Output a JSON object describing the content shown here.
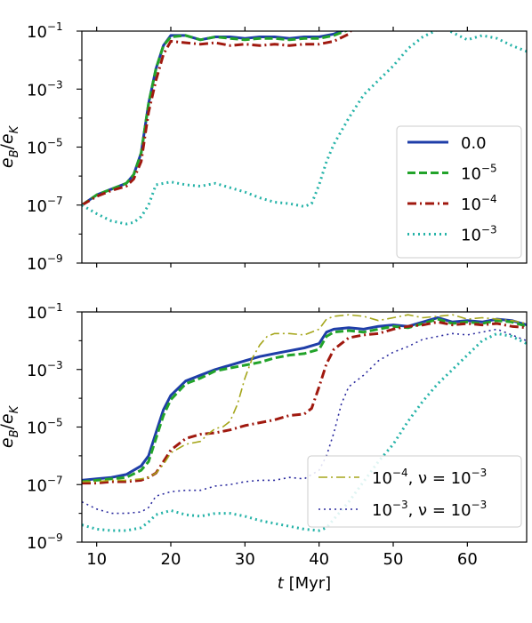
{
  "chart_data": [
    {
      "type": "line",
      "xlabel": "",
      "ylabel": "e_B / ē_K",
      "xlim": [
        8,
        68
      ],
      "ylim_log10": [
        -9,
        -1
      ],
      "yscale": "log",
      "x_ticks": [
        10,
        20,
        30,
        40,
        50,
        60
      ],
      "x_tick_labels": [],
      "y_ticks_log10": [
        -9,
        -7,
        -5,
        -3,
        -1
      ],
      "y_tick_labels": [
        {
          "base": "10",
          "exp": "−9"
        },
        {
          "base": "10",
          "exp": "−7"
        },
        {
          "base": "10",
          "exp": "−5"
        },
        {
          "base": "10",
          "exp": "−3"
        },
        {
          "base": "10",
          "exp": "−1"
        }
      ],
      "legend_position": "lower-right",
      "series": [
        {
          "name": "0.0",
          "name_exp": "",
          "color": "#1f3ea8",
          "dash": "solid",
          "width": 3,
          "x": [
            8,
            10,
            12,
            14,
            15,
            16,
            17,
            18,
            19,
            20,
            22,
            24,
            26,
            28,
            30,
            32,
            34,
            36,
            38,
            40,
            42,
            44,
            44.5
          ],
          "y_log10": [
            -7.0,
            -6.65,
            -6.45,
            -6.25,
            -5.95,
            -5.2,
            -3.5,
            -2.3,
            -1.5,
            -1.15,
            -1.15,
            -1.3,
            -1.2,
            -1.2,
            -1.25,
            -1.2,
            -1.2,
            -1.25,
            -1.2,
            -1.2,
            -1.1,
            -0.9,
            -0.7
          ]
        },
        {
          "name": "10",
          "name_exp": "−5",
          "color": "#22a32a",
          "dash": "dashed",
          "width": 3,
          "x": [
            8,
            10,
            12,
            14,
            15,
            16,
            17,
            18,
            19,
            20,
            22,
            24,
            26,
            28,
            30,
            32,
            34,
            36,
            38,
            40,
            42,
            44,
            44.5
          ],
          "y_log10": [
            -7.0,
            -6.65,
            -6.45,
            -6.25,
            -5.95,
            -5.2,
            -3.5,
            -2.3,
            -1.5,
            -1.2,
            -1.15,
            -1.3,
            -1.2,
            -1.25,
            -1.3,
            -1.25,
            -1.25,
            -1.3,
            -1.25,
            -1.25,
            -1.15,
            -0.95,
            -0.7
          ]
        },
        {
          "name": "10",
          "name_exp": "−4",
          "color": "#a0190f",
          "dash": "dashdot",
          "width": 3,
          "x": [
            8,
            10,
            12,
            14,
            15,
            16,
            17,
            18,
            19,
            20,
            22,
            24,
            26,
            28,
            30,
            32,
            34,
            36,
            38,
            40,
            42,
            44,
            44.5
          ],
          "y_log10": [
            -7.0,
            -6.7,
            -6.5,
            -6.35,
            -6.1,
            -5.5,
            -3.8,
            -2.7,
            -1.8,
            -1.35,
            -1.4,
            -1.45,
            -1.4,
            -1.5,
            -1.45,
            -1.5,
            -1.45,
            -1.5,
            -1.45,
            -1.45,
            -1.35,
            -1.1,
            -0.9
          ]
        },
        {
          "name": "10",
          "name_exp": "−3",
          "color": "#26b3a8",
          "dash": "dotted",
          "width": 3,
          "x": [
            8,
            10,
            12,
            14,
            15,
            16,
            17,
            18,
            20,
            22,
            24,
            26,
            28,
            30,
            32,
            34,
            36,
            38,
            39,
            40,
            41,
            42,
            44,
            46,
            48,
            50,
            52,
            54,
            56,
            57,
            58,
            60,
            62,
            64,
            66,
            68
          ],
          "y_log10": [
            -7.0,
            -7.3,
            -7.55,
            -7.65,
            -7.6,
            -7.4,
            -7.0,
            -6.3,
            -6.2,
            -6.3,
            -6.35,
            -6.25,
            -6.4,
            -6.55,
            -6.75,
            -6.9,
            -6.95,
            -7.05,
            -6.95,
            -6.3,
            -5.5,
            -4.9,
            -4.0,
            -3.2,
            -2.7,
            -2.2,
            -1.6,
            -1.2,
            -0.95,
            -0.9,
            -1.05,
            -1.3,
            -1.15,
            -1.25,
            -1.5,
            -1.7
          ]
        }
      ]
    },
    {
      "type": "line",
      "xlabel": "t [Myr]",
      "ylabel": "e_B / ē_K",
      "xlim": [
        8,
        68
      ],
      "ylim_log10": [
        -9,
        -1
      ],
      "yscale": "log",
      "x_ticks": [
        10,
        20,
        30,
        40,
        50,
        60
      ],
      "x_tick_labels": [
        "10",
        "20",
        "30",
        "40",
        "50",
        "60"
      ],
      "y_ticks_log10": [
        -9,
        -7,
        -5,
        -3,
        -1
      ],
      "y_tick_labels": [
        {
          "base": "10",
          "exp": "−9"
        },
        {
          "base": "10",
          "exp": "−7"
        },
        {
          "base": "10",
          "exp": "−5"
        },
        {
          "base": "10",
          "exp": "−3"
        },
        {
          "base": "10",
          "exp": "−1"
        }
      ],
      "legend_position": "lower-right",
      "series": [
        {
          "name": "",
          "color": "#1f3ea8",
          "dash": "solid",
          "width": 3,
          "in_legend": false,
          "x": [
            8,
            10,
            12,
            14,
            16,
            17,
            18,
            19,
            20,
            22,
            24,
            26,
            28,
            30,
            32,
            34,
            36,
            38,
            40,
            41,
            42,
            44,
            46,
            48,
            50,
            52,
            54,
            56,
            58,
            60,
            62,
            64,
            66,
            68
          ],
          "y_log10": [
            -6.85,
            -6.8,
            -6.75,
            -6.65,
            -6.35,
            -6.0,
            -5.2,
            -4.4,
            -3.9,
            -3.4,
            -3.2,
            -3.0,
            -2.85,
            -2.7,
            -2.55,
            -2.45,
            -2.35,
            -2.25,
            -2.1,
            -1.7,
            -1.6,
            -1.55,
            -1.6,
            -1.5,
            -1.45,
            -1.5,
            -1.35,
            -1.2,
            -1.35,
            -1.3,
            -1.35,
            -1.25,
            -1.3,
            -1.45
          ]
        },
        {
          "name": "",
          "color": "#22a32a",
          "dash": "dashed",
          "width": 3,
          "in_legend": false,
          "x": [
            8,
            10,
            12,
            14,
            16,
            17,
            18,
            19,
            20,
            22,
            24,
            26,
            28,
            30,
            32,
            34,
            36,
            38,
            40,
            41,
            42,
            44,
            46,
            48,
            50,
            52,
            54,
            56,
            58,
            60,
            62,
            64,
            66,
            68
          ],
          "y_log10": [
            -6.9,
            -6.85,
            -6.8,
            -6.75,
            -6.5,
            -6.2,
            -5.4,
            -4.6,
            -4.05,
            -3.5,
            -3.3,
            -3.05,
            -2.95,
            -2.85,
            -2.75,
            -2.6,
            -2.5,
            -2.45,
            -2.3,
            -1.85,
            -1.7,
            -1.65,
            -1.7,
            -1.6,
            -1.5,
            -1.55,
            -1.4,
            -1.25,
            -1.4,
            -1.35,
            -1.4,
            -1.3,
            -1.35,
            -1.5
          ]
        },
        {
          "name": "",
          "color": "#a0190f",
          "dash": "dashdot",
          "width": 3,
          "in_legend": false,
          "x": [
            8,
            10,
            12,
            14,
            16,
            17,
            18,
            19,
            20,
            22,
            24,
            26,
            28,
            30,
            32,
            34,
            36,
            38,
            39,
            40,
            41,
            42,
            44,
            46,
            48,
            50,
            52,
            54,
            56,
            58,
            60,
            62,
            64,
            66,
            68
          ],
          "y_log10": [
            -6.95,
            -6.95,
            -6.9,
            -6.9,
            -6.85,
            -6.75,
            -6.6,
            -6.2,
            -5.8,
            -5.4,
            -5.25,
            -5.2,
            -5.1,
            -4.95,
            -4.85,
            -4.75,
            -4.6,
            -4.55,
            -4.35,
            -3.6,
            -2.8,
            -2.3,
            -1.9,
            -1.8,
            -1.75,
            -1.6,
            -1.5,
            -1.45,
            -1.35,
            -1.45,
            -1.4,
            -1.45,
            -1.4,
            -1.5,
            -1.55
          ]
        },
        {
          "name": "10",
          "name_suffix": ", ν = 10",
          "name_exp": "−4",
          "name_exp2": "−3",
          "color": "#a5a61b",
          "dash": "dashdot",
          "width": 1.6,
          "in_legend": true,
          "x": [
            8,
            10,
            12,
            14,
            16,
            17,
            18,
            19,
            20,
            22,
            24,
            25,
            26,
            27,
            28,
            29,
            30,
            31,
            32,
            33,
            34,
            36,
            38,
            40,
            41,
            42,
            44,
            46,
            48,
            50,
            52,
            54,
            56,
            58,
            60,
            62,
            64,
            66,
            68
          ],
          "y_log10": [
            -6.9,
            -6.9,
            -6.85,
            -6.85,
            -6.8,
            -6.75,
            -6.6,
            -6.3,
            -5.9,
            -5.6,
            -5.5,
            -5.25,
            -5.05,
            -5.0,
            -4.8,
            -4.2,
            -3.3,
            -2.6,
            -2.15,
            -1.85,
            -1.75,
            -1.75,
            -1.8,
            -1.6,
            -1.25,
            -1.15,
            -1.1,
            -1.15,
            -1.3,
            -1.2,
            -1.1,
            -1.2,
            -1.15,
            -1.1,
            -1.25,
            -1.2,
            -1.25,
            -1.3,
            -1.4
          ]
        },
        {
          "name": "10",
          "name_suffix": ", ν = 10",
          "name_exp": "−3",
          "name_exp2": "−3",
          "color": "#2a2a9e",
          "dash": "dotted",
          "width": 1.6,
          "in_legend": true,
          "x": [
            8,
            10,
            12,
            14,
            16,
            17,
            18,
            20,
            22,
            24,
            26,
            28,
            30,
            32,
            34,
            36,
            38,
            40,
            41,
            42,
            43,
            44,
            46,
            48,
            50,
            52,
            54,
            56,
            58,
            60,
            62,
            64,
            66,
            68
          ],
          "y_log10": [
            -7.6,
            -7.85,
            -8.0,
            -8.0,
            -7.95,
            -7.8,
            -7.4,
            -7.25,
            -7.2,
            -7.2,
            -7.05,
            -7.0,
            -6.9,
            -6.85,
            -6.85,
            -6.75,
            -6.8,
            -6.5,
            -6.0,
            -5.2,
            -4.2,
            -3.6,
            -3.2,
            -2.7,
            -2.4,
            -2.2,
            -1.95,
            -1.85,
            -1.75,
            -1.8,
            -1.7,
            -1.6,
            -1.8,
            -2.0
          ]
        },
        {
          "name": "",
          "color": "#26b3a8",
          "dash": "dotted",
          "width": 3,
          "in_legend": false,
          "x": [
            8,
            10,
            12,
            14,
            16,
            17,
            18,
            20,
            22,
            24,
            26,
            28,
            30,
            32,
            34,
            36,
            38,
            40,
            41,
            42,
            44,
            46,
            48,
            50,
            52,
            54,
            56,
            58,
            60,
            62,
            64,
            66,
            68
          ],
          "y_log10": [
            -8.4,
            -8.55,
            -8.6,
            -8.6,
            -8.5,
            -8.3,
            -8.05,
            -7.9,
            -8.05,
            -8.1,
            -8.0,
            -8.0,
            -8.1,
            -8.25,
            -8.35,
            -8.45,
            -8.55,
            -8.6,
            -8.5,
            -8.2,
            -7.6,
            -6.9,
            -6.2,
            -5.6,
            -4.8,
            -4.1,
            -3.5,
            -3.0,
            -2.5,
            -2.0,
            -1.75,
            -1.85,
            -2.1
          ]
        }
      ]
    }
  ]
}
